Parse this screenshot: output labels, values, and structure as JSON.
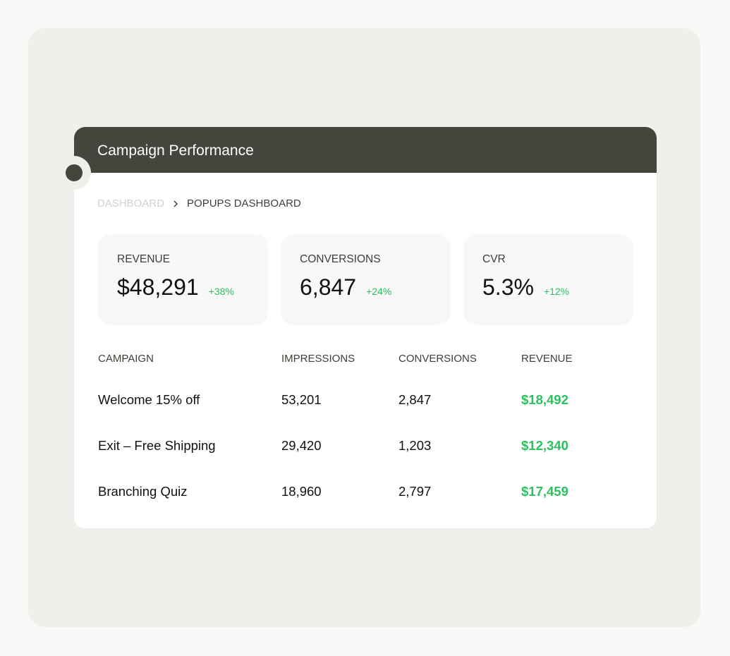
{
  "header": {
    "title": "Campaign Performance"
  },
  "breadcrumb": {
    "items": [
      "DASHBOARD",
      "POPUPS DASHBOARD"
    ]
  },
  "stats": [
    {
      "label": "REVENUE",
      "value": "$48,291",
      "change": "+38%"
    },
    {
      "label": "CONVERSIONS",
      "value": "6,847",
      "change": "+24%"
    },
    {
      "label": "CVR",
      "value": "5.3%",
      "change": "+12%"
    }
  ],
  "table": {
    "columns": [
      "CAMPAIGN",
      "IMPRESSIONS",
      "CONVERSIONS",
      "REVENUE"
    ],
    "rows": [
      [
        "Welcome 15% off",
        "53,201",
        "2,847",
        "$18,492"
      ],
      [
        "Exit – Free Shipping",
        "29,420",
        "1,203",
        "$12,340"
      ],
      [
        "Branching Quiz",
        "18,960",
        "2,797",
        "$17,459"
      ]
    ]
  },
  "colors": {
    "header": "#46453d",
    "positive": "#2cc15e",
    "panel": "#f0efeb"
  }
}
